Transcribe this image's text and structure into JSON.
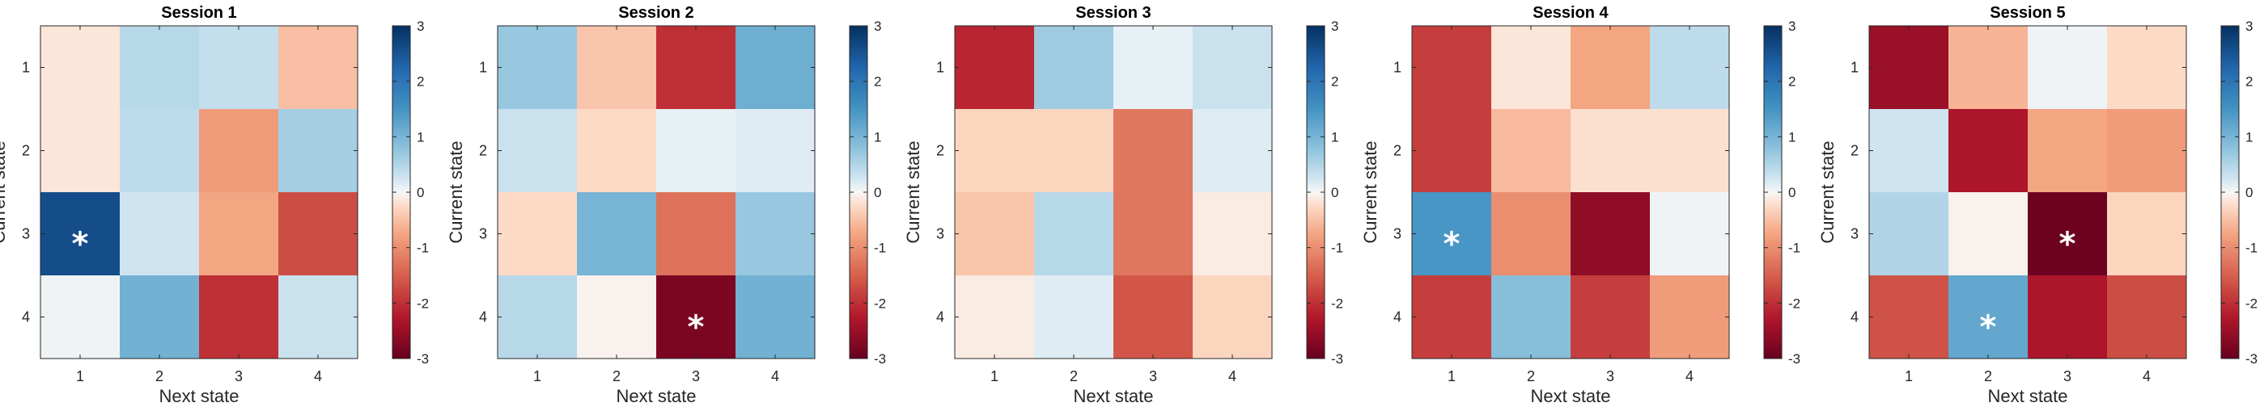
{
  "chart_data": [
    {
      "type": "heatmap",
      "title": "Session 1",
      "xlabel": "Next state",
      "ylabel": "Current state",
      "x_categories": [
        "1",
        "2",
        "3",
        "4"
      ],
      "y_categories": [
        "1",
        "2",
        "3",
        "4"
      ],
      "values": [
        [
          -0.15,
          0.45,
          0.35,
          -0.5
        ],
        [
          -0.15,
          0.4,
          -0.85,
          0.6
        ],
        [
          2.6,
          0.25,
          -0.75,
          -1.7
        ],
        [
          0.05,
          1.05,
          -2.0,
          0.3
        ]
      ],
      "stars": [
        {
          "row": 3,
          "col": 1,
          "label": "*"
        }
      ],
      "clim": [
        -3,
        3
      ],
      "colorbar_ticks": [
        3,
        2,
        1,
        0,
        -1,
        -2,
        -3
      ]
    },
    {
      "type": "heatmap",
      "title": "Session 2",
      "xlabel": "Next state",
      "ylabel": "Current state",
      "x_categories": [
        "1",
        "2",
        "3",
        "4"
      ],
      "y_categories": [
        "1",
        "2",
        "3",
        "4"
      ],
      "values": [
        [
          0.7,
          -0.45,
          -2.0,
          1.1
        ],
        [
          0.3,
          -0.25,
          0.1,
          0.15
        ],
        [
          -0.25,
          1.0,
          -1.3,
          0.7
        ],
        [
          0.45,
          -0.05,
          -2.8,
          1.05
        ]
      ],
      "stars": [
        {
          "row": 4,
          "col": 3,
          "label": "*"
        }
      ],
      "clim": [
        -3,
        3
      ],
      "colorbar_ticks": [
        3,
        2,
        1,
        0,
        -1,
        -2,
        -3
      ]
    },
    {
      "type": "heatmap",
      "title": "Session 3",
      "xlabel": "Next state",
      "ylabel": "Current state",
      "x_categories": [
        "1",
        "2",
        "3",
        "4"
      ],
      "y_categories": [
        "1",
        "2",
        "3",
        "4"
      ],
      "values": [
        [
          -2.1,
          0.65,
          0.1,
          0.3
        ],
        [
          -0.3,
          -0.3,
          -1.25,
          0.15
        ],
        [
          -0.45,
          0.45,
          -1.25,
          -0.1
        ],
        [
          -0.1,
          0.15,
          -1.6,
          -0.3
        ]
      ],
      "stars": [],
      "clim": [
        -3,
        3
      ],
      "colorbar_ticks": [
        3,
        2,
        1,
        0,
        -1,
        -2,
        -3
      ]
    },
    {
      "type": "heatmap",
      "title": "Session 4",
      "xlabel": "Next state",
      "ylabel": "Current state",
      "x_categories": [
        "1",
        "2",
        "3",
        "4"
      ],
      "y_categories": [
        "1",
        "2",
        "3",
        "4"
      ],
      "values": [
        [
          -1.85,
          -0.15,
          -0.75,
          0.4
        ],
        [
          -1.85,
          -0.55,
          -0.2,
          -0.2
        ],
        [
          1.45,
          -1.0,
          -2.6,
          0.05
        ],
        [
          -1.85,
          0.85,
          -1.85,
          -0.85
        ]
      ],
      "stars": [
        {
          "row": 3,
          "col": 1,
          "label": "*"
        }
      ],
      "clim": [
        -3,
        3
      ],
      "colorbar_ticks": [
        3,
        2,
        1,
        0,
        -1,
        -2,
        -3
      ]
    },
    {
      "type": "heatmap",
      "title": "Session 5",
      "xlabel": "Next state",
      "ylabel": "Current state",
      "x_categories": [
        "1",
        "2",
        "3",
        "4"
      ],
      "y_categories": [
        "1",
        "2",
        "3",
        "4"
      ],
      "values": [
        [
          -2.5,
          -0.6,
          0.05,
          -0.25
        ],
        [
          0.25,
          -2.3,
          -0.75,
          -0.85
        ],
        [
          0.5,
          -0.05,
          -2.95,
          -0.3
        ],
        [
          -1.65,
          1.2,
          -2.3,
          -1.7
        ]
      ],
      "stars": [
        {
          "row": 3,
          "col": 3,
          "label": "*"
        },
        {
          "row": 4,
          "col": 2,
          "label": "*"
        }
      ],
      "clim": [
        -3,
        3
      ],
      "colorbar_ticks": [
        3,
        2,
        1,
        0,
        -1,
        -2,
        -3
      ]
    }
  ]
}
